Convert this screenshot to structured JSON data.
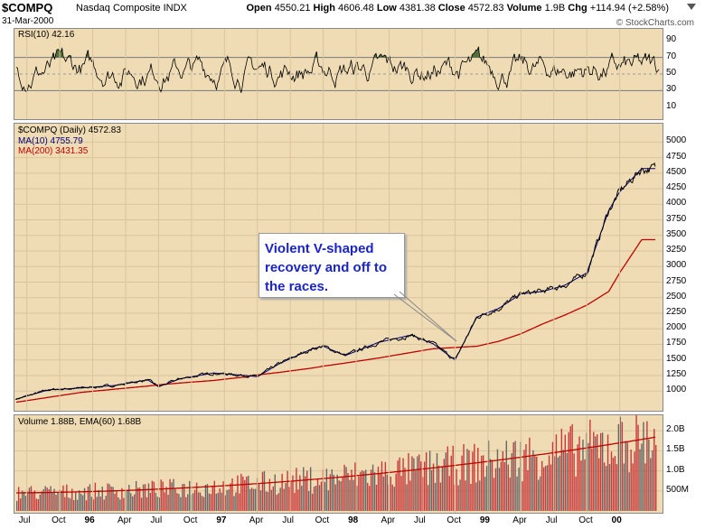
{
  "header": {
    "symbol": "$COMPQ",
    "name": "Nasdaq Composite INDX",
    "date": "31-Mar-2000",
    "open_label": "Open",
    "open": "4550.21",
    "high_label": "High",
    "high": "4606.48",
    "low_label": "Low",
    "low": "4381.38",
    "close_label": "Close",
    "close": "4572.83",
    "volume_label": "Volume",
    "volume": "1.9B",
    "chg_label": "Chg",
    "chg": "+114.94 (+2.58%)",
    "brand": "© StockCharts.com"
  },
  "rsi_panel": {
    "label": "RSI(10) 42.16",
    "y_ticks": [
      "90",
      "70",
      "50",
      "30",
      "10"
    ]
  },
  "price_panel": {
    "label": "$COMPQ (Daily) 4572.83",
    "ma10_label": "MA(10) 4755.79",
    "ma200_label": "MA(200) 3431.35",
    "y_ticks": [
      "5000",
      "4750",
      "4500",
      "4250",
      "4000",
      "3750",
      "3500",
      "3250",
      "3000",
      "2750",
      "2500",
      "2250",
      "2000",
      "1750",
      "1500",
      "1250",
      "1000"
    ]
  },
  "volume_panel": {
    "label": "Volume 1.88B, EMA(60) 1.68B",
    "y_ticks": [
      "2.0B",
      "1.5B",
      "1.0B",
      "500M"
    ]
  },
  "annotation": {
    "text": "Violent V-shaped\nrecovery and off to\nthe races."
  },
  "x_axis": [
    "Jul",
    "Oct",
    "96",
    "Apr",
    "Jul",
    "Oct",
    "97",
    "Apr",
    "Jul",
    "Oct",
    "98",
    "Apr",
    "Jul",
    "Oct",
    "99",
    "Apr",
    "Jul",
    "Oct",
    "00"
  ],
  "colors": {
    "panel_bg": "#f0dcb4",
    "price_line": "#000000",
    "ma10": "#00007a",
    "ma200": "#c00000",
    "volume_bar": "#c8383c",
    "rsi_fill_high": "#4f6e3a",
    "annotation_text": "#1a24c8"
  },
  "chart_data": {
    "type": "line",
    "x": [
      "1995-06",
      "1995-09",
      "1995-12",
      "1996-03",
      "1996-06",
      "1996-07",
      "1996-09",
      "1996-12",
      "1997-03",
      "1997-04",
      "1997-06",
      "1997-09",
      "1997-10",
      "1997-12",
      "1998-03",
      "1998-06",
      "1998-08",
      "1998-10",
      "1998-12",
      "1999-02",
      "1999-04",
      "1999-06",
      "1999-08",
      "1999-10",
      "1999-12",
      "2000-01",
      "2000-03"
    ],
    "series": [
      {
        "name": "$COMPQ (Daily)",
        "values": [
          870,
          1020,
          1050,
          1090,
          1180,
          1070,
          1200,
          1290,
          1250,
          1230,
          1440,
          1680,
          1720,
          1570,
          1780,
          1900,
          1760,
          1500,
          2190,
          2330,
          2560,
          2600,
          2700,
          2900,
          3900,
          4200,
          4572.83
        ]
      },
      {
        "name": "MA(200)",
        "values": [
          820,
          900,
          980,
          1030,
          1080,
          1100,
          1130,
          1170,
          1230,
          1260,
          1300,
          1370,
          1400,
          1450,
          1530,
          1620,
          1680,
          1700,
          1720,
          1800,
          1920,
          2080,
          2220,
          2380,
          2600,
          2900,
          3431.35
        ]
      }
    ],
    "ylim": [
      870,
      5150
    ],
    "rsi": {
      "label": "RSI(10)",
      "last": 42.16,
      "levels": [
        30,
        70
      ],
      "ylim": [
        0,
        100
      ]
    },
    "volume": {
      "label": "Volume",
      "last": "1.88B",
      "ema_label": "EMA(60)",
      "ema_last": "1.68B",
      "ylim": [
        0,
        2.3
      ]
    }
  }
}
